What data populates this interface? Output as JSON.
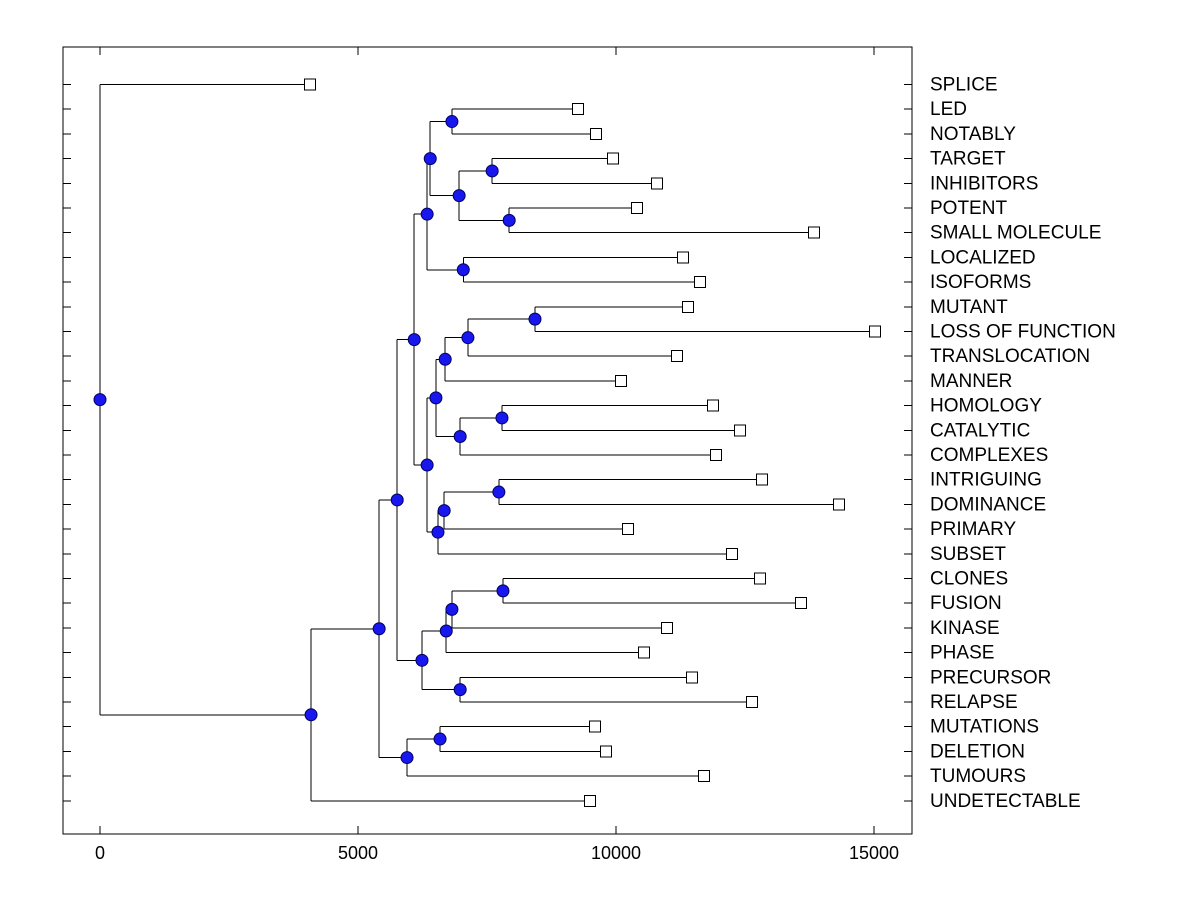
{
  "figure": {
    "background": "#ffffff",
    "box_color": "#000000",
    "line_color": "#000000",
    "internal_node_fill": "#1717ee",
    "internal_node_edge": "#000060",
    "leaf_marker_fill": "#ffffff",
    "leaf_marker_edge": "#000000"
  },
  "chart_data": {
    "type": "dendrogram",
    "orientation": "left-to-right",
    "title": "",
    "xlabel": "",
    "ylabel": "",
    "grid": false,
    "legend": null,
    "x_axis": {
      "ticks": [
        0,
        5000,
        10000,
        15000
      ],
      "tick_labels": [
        "0",
        "5000",
        "10000",
        "15000"
      ],
      "xlim": [
        -720,
        15740
      ]
    },
    "leaf_marker": "open-square",
    "internal_marker": "filled-circle",
    "leaves": [
      {
        "label": "SPLICE",
        "x": 4070
      },
      {
        "label": "LED",
        "x": 9260
      },
      {
        "label": "NOTABLY",
        "x": 9610
      },
      {
        "label": "TARGET",
        "x": 9940
      },
      {
        "label": "INHIBITORS",
        "x": 10790
      },
      {
        "label": "POTENT",
        "x": 10410
      },
      {
        "label": "SMALL MOLECULE",
        "x": 13840
      },
      {
        "label": "LOCALIZED",
        "x": 11300
      },
      {
        "label": "ISOFORMS",
        "x": 11630
      },
      {
        "label": "MUTANT",
        "x": 11400
      },
      {
        "label": "LOSS OF FUNCTION",
        "x": 15020
      },
      {
        "label": "TRANSLOCATION",
        "x": 11180
      },
      {
        "label": "MANNER",
        "x": 10100
      },
      {
        "label": "HOMOLOGY",
        "x": 11880
      },
      {
        "label": "CATALYTIC",
        "x": 12400
      },
      {
        "label": "COMPLEXES",
        "x": 11940
      },
      {
        "label": "INTRIGUING",
        "x": 12830
      },
      {
        "label": "DOMINANCE",
        "x": 14320
      },
      {
        "label": "PRIMARY",
        "x": 10230
      },
      {
        "label": "SUBSET",
        "x": 12250
      },
      {
        "label": "CLONES",
        "x": 12790
      },
      {
        "label": "FUSION",
        "x": 13590
      },
      {
        "label": "KINASE",
        "x": 10990
      },
      {
        "label": "PHASE",
        "x": 10540
      },
      {
        "label": "PRECURSOR",
        "x": 11470
      },
      {
        "label": "RELAPSE",
        "x": 12640
      },
      {
        "label": "MUTATIONS",
        "x": 9590
      },
      {
        "label": "DELETION",
        "x": 9810
      },
      {
        "label": "TUMOURS",
        "x": 11710
      },
      {
        "label": "UNDETECTABLE",
        "x": 9500
      }
    ],
    "internal_nodes": [
      {
        "id": "N0",
        "x": 6820,
        "children": [
          "L1",
          "L2"
        ]
      },
      {
        "id": "N1",
        "x": 7600,
        "children": [
          "L3",
          "L4"
        ]
      },
      {
        "id": "N2",
        "x": 7930,
        "children": [
          "L5",
          "L6"
        ]
      },
      {
        "id": "N3",
        "x": 6960,
        "children": [
          "N1",
          "N2"
        ]
      },
      {
        "id": "N4",
        "x": 6400,
        "children": [
          "N0",
          "N3"
        ]
      },
      {
        "id": "N5",
        "x": 7040,
        "children": [
          "L7",
          "L8"
        ]
      },
      {
        "id": "N6",
        "x": 6340,
        "children": [
          "N4",
          "N5"
        ]
      },
      {
        "id": "N7",
        "x": 8430,
        "children": [
          "L9",
          "L10"
        ]
      },
      {
        "id": "N8",
        "x": 7130,
        "children": [
          "N7",
          "L11"
        ]
      },
      {
        "id": "N9",
        "x": 6690,
        "children": [
          "N8",
          "L12"
        ]
      },
      {
        "id": "N10",
        "x": 7790,
        "children": [
          "L13",
          "L14"
        ]
      },
      {
        "id": "N11",
        "x": 6980,
        "children": [
          "N10",
          "L15"
        ]
      },
      {
        "id": "N12",
        "x": 6510,
        "children": [
          "N9",
          "N11"
        ]
      },
      {
        "id": "N13",
        "x": 7730,
        "children": [
          "L16",
          "L17"
        ]
      },
      {
        "id": "N14",
        "x": 6670,
        "children": [
          "N13",
          "L18"
        ]
      },
      {
        "id": "N15",
        "x": 6550,
        "children": [
          "N14",
          "L19"
        ]
      },
      {
        "id": "N16",
        "x": 6340,
        "children": [
          "N12",
          "N15"
        ]
      },
      {
        "id": "N17",
        "x": 6090,
        "children": [
          "N6",
          "N16"
        ]
      },
      {
        "id": "N18",
        "x": 7810,
        "children": [
          "L20",
          "L21"
        ]
      },
      {
        "id": "N19",
        "x": 6820,
        "children": [
          "N18",
          "L22"
        ]
      },
      {
        "id": "N20",
        "x": 6710,
        "children": [
          "N19",
          "L23"
        ]
      },
      {
        "id": "N21",
        "x": 6980,
        "children": [
          "L24",
          "L25"
        ]
      },
      {
        "id": "N22",
        "x": 6240,
        "children": [
          "N20",
          "N21"
        ]
      },
      {
        "id": "N23",
        "x": 5760,
        "children": [
          "N17",
          "N22"
        ]
      },
      {
        "id": "N24",
        "x": 6590,
        "children": [
          "L26",
          "L27"
        ]
      },
      {
        "id": "N25",
        "x": 5950,
        "children": [
          "N24",
          "L28"
        ]
      },
      {
        "id": "N26",
        "x": 5410,
        "children": [
          "N23",
          "N25"
        ]
      },
      {
        "id": "N27",
        "x": 4090,
        "children": [
          "N26",
          "L29"
        ]
      },
      {
        "id": "N28",
        "x": 0,
        "children": [
          "L0",
          "N27"
        ]
      }
    ],
    "root_id": "N28"
  }
}
